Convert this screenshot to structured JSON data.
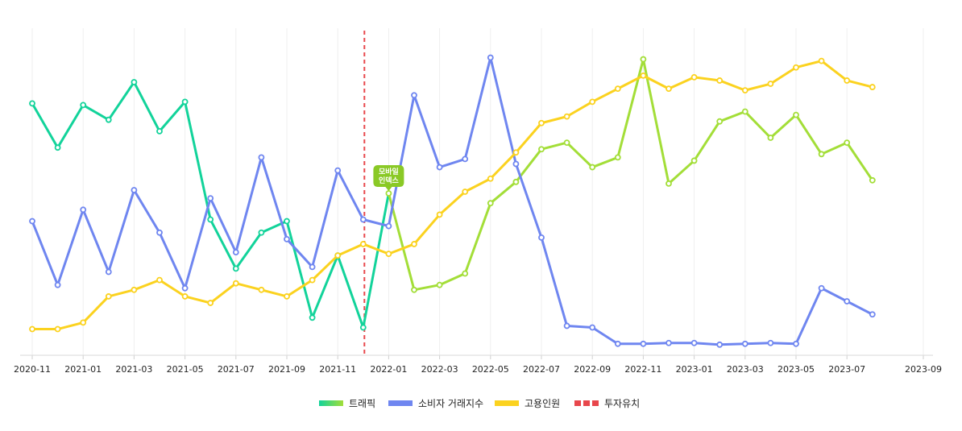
{
  "chart_data": {
    "type": "line",
    "x": [
      "2020-11",
      "2020-12",
      "2021-01",
      "2021-02",
      "2021-03",
      "2021-04",
      "2021-05",
      "2021-06",
      "2021-07",
      "2021-08",
      "2021-09",
      "2021-10",
      "2021-11",
      "2021-12",
      "2022-01",
      "2022-02",
      "2022-03",
      "2022-04",
      "2022-05",
      "2022-06",
      "2022-07",
      "2022-08",
      "2022-09",
      "2022-10",
      "2022-11",
      "2022-12",
      "2023-01",
      "2023-02",
      "2023-03",
      "2023-04",
      "2023-05",
      "2023-06",
      "2023-07",
      "2023-08"
    ],
    "tick_labels": [
      "2020-11",
      "2021-01",
      "2021-03",
      "2021-05",
      "2021-07",
      "2021-09",
      "2021-11",
      "2022-01",
      "2022-03",
      "2022-05",
      "2022-07",
      "2022-09",
      "2022-11",
      "2023-01",
      "2023-03",
      "2023-05",
      "2023-07",
      "2023-09"
    ],
    "y_unit": "relative index (0–100)",
    "ylim": [
      0,
      100
    ],
    "grid": "vertical",
    "legend_position": "bottom",
    "series": [
      {
        "name": "트래픽",
        "color": "#12d39a",
        "color_secondary": "#a3de38",
        "values": [
          77,
          63.5,
          76.5,
          72,
          83.5,
          68.5,
          77.5,
          41.5,
          26.5,
          37.5,
          41,
          11.5,
          30.5,
          8.5,
          49.5,
          20,
          21.5,
          25,
          46.5,
          53,
          63,
          65,
          57.5,
          60.5,
          90.5,
          52.5,
          59.5,
          71.5,
          74.5,
          66.5,
          73.5,
          61.5,
          65,
          53.5
        ]
      },
      {
        "name": "소비자 거래지수",
        "color": "#6f86f0",
        "values": [
          41,
          21.5,
          44.5,
          25.5,
          50.5,
          37.5,
          20.5,
          48,
          31.5,
          60.5,
          35.5,
          27,
          56.5,
          41.5,
          39.5,
          79.5,
          57.5,
          60,
          91,
          58.5,
          36,
          9,
          8.5,
          3.5,
          3.5,
          3.75,
          3.75,
          3.25,
          3.5,
          3.75,
          3.5,
          20.5,
          16.5,
          12.5
        ]
      },
      {
        "name": "고용인원",
        "color": "#fbd21f",
        "values": [
          8,
          8,
          10,
          18,
          20,
          23,
          18,
          16,
          22,
          20,
          18,
          23,
          30.5,
          34,
          31,
          34,
          43,
          50,
          54,
          62,
          71,
          73,
          77.5,
          81.5,
          85.5,
          81.5,
          85,
          84,
          81,
          83,
          88,
          90,
          84,
          82
        ]
      }
    ],
    "investment_marker": {
      "name": "투자유치",
      "x": "2021-12",
      "color": "#e8474c"
    },
    "annotation": {
      "text_line1": "모바일",
      "text_line2": "인덱스",
      "x": "2022-01",
      "series": "트래픽",
      "color": "#8ac926"
    }
  },
  "legend": {
    "items": [
      {
        "label": "트래픽",
        "color": "#12d39a",
        "color2": "#a3de38",
        "style": "solid-gradient"
      },
      {
        "label": "소비자 거래지수",
        "color": "#6f86f0",
        "style": "solid"
      },
      {
        "label": "고용인원",
        "color": "#fbd21f",
        "style": "solid"
      },
      {
        "label": "투자유치",
        "color": "#e8474c",
        "style": "dashed"
      }
    ]
  }
}
